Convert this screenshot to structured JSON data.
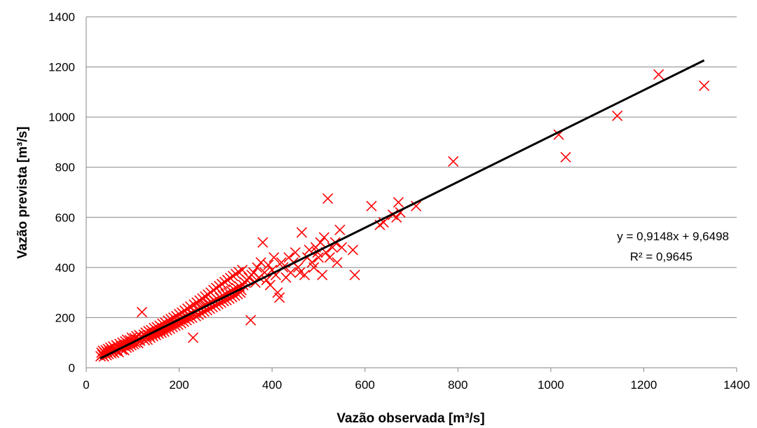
{
  "chart_data": {
    "type": "scatter",
    "title": "",
    "xlabel": "Vazão observada [m³/s]",
    "ylabel": "Vazão prevista [m³/s]",
    "xlim": [
      0,
      1400
    ],
    "ylim": [
      0,
      1400
    ],
    "xticks": [
      "0",
      "200",
      "400",
      "600",
      "800",
      "1000",
      "1200",
      "1400"
    ],
    "yticks": [
      "0",
      "200",
      "400",
      "600",
      "800",
      "1000",
      "1200",
      "1400"
    ],
    "grid": "horizontal",
    "legend": "none",
    "marker": "x",
    "marker_color": "#ff0000",
    "trendline_color": "#000000",
    "trendline": {
      "slope": 0.9148,
      "intercept": 9.6498,
      "x_range": [
        30,
        1330
      ],
      "equation": "y = 0,9148x + 9,6498",
      "r2": "R² = 0,9645"
    },
    "points": [
      [
        31,
        46
      ],
      [
        33,
        60
      ],
      [
        35,
        52
      ],
      [
        36,
        68
      ],
      [
        38,
        45
      ],
      [
        40,
        58
      ],
      [
        42,
        70
      ],
      [
        44,
        50
      ],
      [
        45,
        62
      ],
      [
        47,
        75
      ],
      [
        48,
        55
      ],
      [
        50,
        66
      ],
      [
        52,
        80
      ],
      [
        54,
        58
      ],
      [
        55,
        72
      ],
      [
        57,
        64
      ],
      [
        58,
        85
      ],
      [
        60,
        60
      ],
      [
        62,
        76
      ],
      [
        64,
        68
      ],
      [
        65,
        90
      ],
      [
        67,
        70
      ],
      [
        68,
        82
      ],
      [
        70,
        62
      ],
      [
        72,
        95
      ],
      [
        74,
        78
      ],
      [
        75,
        86
      ],
      [
        77,
        72
      ],
      [
        78,
        100
      ],
      [
        80,
        88
      ],
      [
        82,
        70
      ],
      [
        84,
        105
      ],
      [
        85,
        92
      ],
      [
        87,
        80
      ],
      [
        88,
        112
      ],
      [
        90,
        96
      ],
      [
        92,
        84
      ],
      [
        94,
        110
      ],
      [
        95,
        100
      ],
      [
        97,
        90
      ],
      [
        98,
        120
      ],
      [
        100,
        105
      ],
      [
        102,
        94
      ],
      [
        104,
        118
      ],
      [
        106,
        100
      ],
      [
        108,
        126
      ],
      [
        110,
        112
      ],
      [
        112,
        98
      ],
      [
        114,
        130
      ],
      [
        116,
        108
      ],
      [
        118,
        124
      ],
      [
        120,
        222
      ],
      [
        122,
        118
      ],
      [
        124,
        132
      ],
      [
        126,
        110
      ],
      [
        128,
        140
      ],
      [
        130,
        124
      ],
      [
        132,
        112
      ],
      [
        134,
        146
      ],
      [
        136,
        130
      ],
      [
        138,
        120
      ],
      [
        140,
        150
      ],
      [
        142,
        136
      ],
      [
        144,
        126
      ],
      [
        146,
        158
      ],
      [
        148,
        140
      ],
      [
        150,
        130
      ],
      [
        152,
        162
      ],
      [
        154,
        146
      ],
      [
        156,
        136
      ],
      [
        158,
        168
      ],
      [
        160,
        150
      ],
      [
        162,
        140
      ],
      [
        164,
        176
      ],
      [
        166,
        156
      ],
      [
        168,
        144
      ],
      [
        170,
        180
      ],
      [
        172,
        162
      ],
      [
        174,
        150
      ],
      [
        176,
        188
      ],
      [
        178,
        168
      ],
      [
        180,
        156
      ],
      [
        182,
        194
      ],
      [
        184,
        174
      ],
      [
        186,
        162
      ],
      [
        188,
        200
      ],
      [
        190,
        180
      ],
      [
        192,
        168
      ],
      [
        194,
        206
      ],
      [
        196,
        186
      ],
      [
        198,
        172
      ],
      [
        200,
        214
      ],
      [
        202,
        192
      ],
      [
        204,
        178
      ],
      [
        206,
        220
      ],
      [
        208,
        198
      ],
      [
        210,
        184
      ],
      [
        212,
        228
      ],
      [
        214,
        204
      ],
      [
        216,
        190
      ],
      [
        218,
        236
      ],
      [
        220,
        210
      ],
      [
        222,
        196
      ],
      [
        224,
        244
      ],
      [
        226,
        216
      ],
      [
        228,
        200
      ],
      [
        230,
        120
      ],
      [
        232,
        252
      ],
      [
        234,
        222
      ],
      [
        236,
        206
      ],
      [
        238,
        260
      ],
      [
        240,
        230
      ],
      [
        242,
        212
      ],
      [
        244,
        268
      ],
      [
        246,
        238
      ],
      [
        248,
        218
      ],
      [
        250,
        276
      ],
      [
        252,
        244
      ],
      [
        254,
        224
      ],
      [
        256,
        284
      ],
      [
        258,
        250
      ],
      [
        260,
        230
      ],
      [
        262,
        292
      ],
      [
        264,
        256
      ],
      [
        266,
        236
      ],
      [
        268,
        300
      ],
      [
        270,
        262
      ],
      [
        272,
        242
      ],
      [
        274,
        310
      ],
      [
        276,
        268
      ],
      [
        278,
        248
      ],
      [
        280,
        318
      ],
      [
        282,
        274
      ],
      [
        284,
        254
      ],
      [
        286,
        326
      ],
      [
        288,
        280
      ],
      [
        290,
        260
      ],
      [
        292,
        334
      ],
      [
        294,
        288
      ],
      [
        296,
        266
      ],
      [
        298,
        342
      ],
      [
        300,
        294
      ],
      [
        302,
        270
      ],
      [
        304,
        350
      ],
      [
        306,
        300
      ],
      [
        308,
        276
      ],
      [
        310,
        358
      ],
      [
        312,
        306
      ],
      [
        314,
        282
      ],
      [
        316,
        366
      ],
      [
        318,
        312
      ],
      [
        320,
        288
      ],
      [
        322,
        374
      ],
      [
        324,
        318
      ],
      [
        326,
        294
      ],
      [
        328,
        382
      ],
      [
        330,
        324
      ],
      [
        332,
        300
      ],
      [
        334,
        310
      ],
      [
        336,
        390
      ],
      [
        338,
        330
      ],
      [
        342,
        340
      ],
      [
        346,
        350
      ],
      [
        350,
        360
      ],
      [
        354,
        190
      ],
      [
        356,
        370
      ],
      [
        360,
        380
      ],
      [
        364,
        340
      ],
      [
        368,
        400
      ],
      [
        372,
        360
      ],
      [
        376,
        420
      ],
      [
        380,
        500
      ],
      [
        384,
        380
      ],
      [
        388,
        350
      ],
      [
        392,
        410
      ],
      [
        396,
        330
      ],
      [
        400,
        390
      ],
      [
        404,
        440
      ],
      [
        408,
        370
      ],
      [
        412,
        300
      ],
      [
        416,
        280
      ],
      [
        420,
        420
      ],
      [
        424,
        400
      ],
      [
        430,
        360
      ],
      [
        436,
        440
      ],
      [
        440,
        380
      ],
      [
        446,
        420
      ],
      [
        450,
        460
      ],
      [
        456,
        400
      ],
      [
        460,
        380
      ],
      [
        464,
        540
      ],
      [
        470,
        370
      ],
      [
        476,
        440
      ],
      [
        480,
        470
      ],
      [
        486,
        420
      ],
      [
        490,
        400
      ],
      [
        494,
        480
      ],
      [
        498,
        460
      ],
      [
        500,
        440
      ],
      [
        504,
        500
      ],
      [
        508,
        370
      ],
      [
        512,
        520
      ],
      [
        516,
        460
      ],
      [
        520,
        675
      ],
      [
        524,
        440
      ],
      [
        530,
        480
      ],
      [
        536,
        500
      ],
      [
        540,
        420
      ],
      [
        546,
        550
      ],
      [
        550,
        480
      ],
      [
        574,
        470
      ],
      [
        578,
        370
      ],
      [
        614,
        645
      ],
      [
        632,
        570
      ],
      [
        640,
        580
      ],
      [
        660,
        610
      ],
      [
        668,
        600
      ],
      [
        672,
        660
      ],
      [
        676,
        620
      ],
      [
        710,
        645
      ],
      [
        790,
        823
      ],
      [
        1017,
        930
      ],
      [
        1032,
        840
      ],
      [
        1143,
        1005
      ],
      [
        1232,
        1170
      ],
      [
        1330,
        1125
      ]
    ]
  }
}
